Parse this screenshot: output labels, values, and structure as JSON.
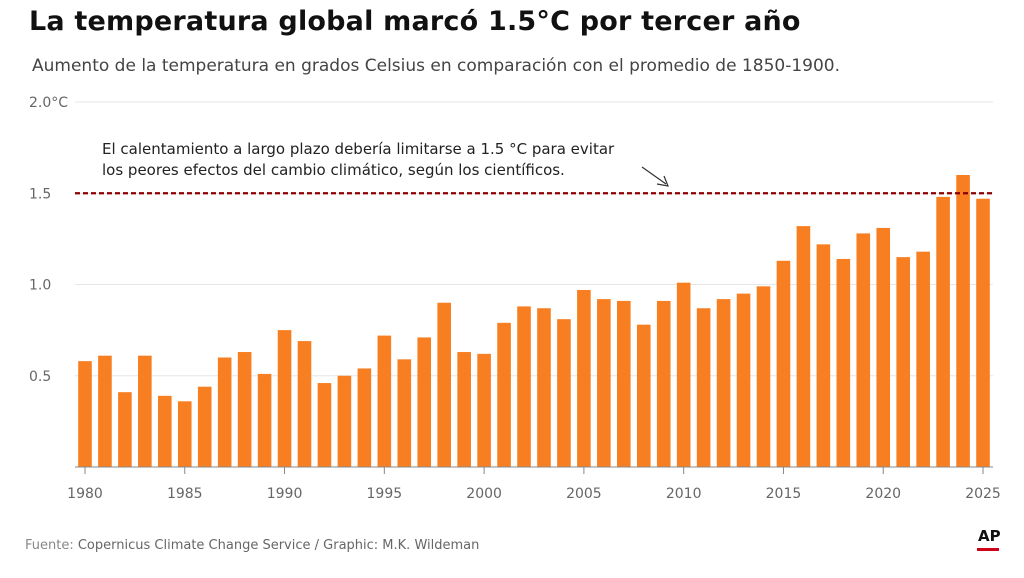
{
  "title": "La temperatura global marcó 1.5°C por tercer año",
  "subtitle": "Aumento de la temperatura en grados Celsius en comparación con el promedio de 1850-1900.",
  "footer": {
    "label": "Fuente:",
    "text": "Copernicus Climate Change Service / Graphic: M.K. Wildeman"
  },
  "logo": "AP",
  "colors": {
    "bar": "#f77f22",
    "threshold": "#8b0000",
    "grid": "#e6e6e6",
    "axis": "#888888"
  },
  "chart_data": {
    "type": "bar",
    "x": [
      1980,
      1981,
      1982,
      1983,
      1984,
      1985,
      1986,
      1987,
      1988,
      1989,
      1990,
      1991,
      1992,
      1993,
      1994,
      1995,
      1996,
      1997,
      1998,
      1999,
      2000,
      2001,
      2002,
      2003,
      2004,
      2005,
      2006,
      2007,
      2008,
      2009,
      2010,
      2011,
      2012,
      2013,
      2014,
      2015,
      2016,
      2017,
      2018,
      2019,
      2020,
      2021,
      2022,
      2023,
      2024,
      2025
    ],
    "values": [
      0.58,
      0.61,
      0.41,
      0.61,
      0.39,
      0.36,
      0.44,
      0.6,
      0.63,
      0.51,
      0.75,
      0.69,
      0.46,
      0.5,
      0.54,
      0.72,
      0.59,
      0.71,
      0.9,
      0.63,
      0.62,
      0.79,
      0.88,
      0.87,
      0.81,
      0.97,
      0.92,
      0.91,
      0.78,
      0.91,
      1.01,
      0.87,
      0.92,
      0.95,
      0.99,
      1.13,
      1.32,
      1.22,
      1.14,
      1.28,
      1.31,
      1.15,
      1.18,
      1.48,
      1.6,
      1.47
    ],
    "x_ticks": [
      "1980",
      "1985",
      "1990",
      "1995",
      "2000",
      "2005",
      "2010",
      "2015",
      "2020",
      "2025"
    ],
    "y_ticks": [
      "0.5",
      "1.0",
      "1.5",
      "2.0°C"
    ],
    "ylim": [
      0,
      2.0
    ],
    "threshold": 1.5,
    "annotation": [
      "El calentamiento a largo plazo debería limitarse a 1.5 °C para evitar",
      "los peores efectos del cambio climático, según los científicos."
    ],
    "grid": true
  }
}
